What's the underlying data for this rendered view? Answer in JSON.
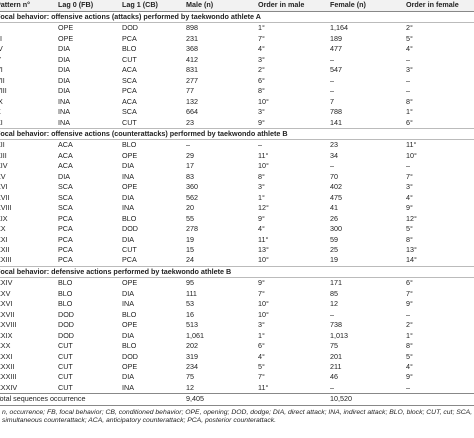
{
  "table": {
    "header": [
      "Pattern n°",
      "Lag 0 (FB)",
      "Lag 1 (CB)",
      "Male (n)",
      "Order in male",
      "Female (n)",
      "Order in female"
    ],
    "sections": [
      {
        "title": "Focal behavior: offensive actions (attacks) performed by taekwondo athlete A",
        "rows": [
          [
            "II",
            "OPE",
            "DOD",
            "898",
            "1°",
            "1,164",
            "2°"
          ],
          [
            "III",
            "OPE",
            "PCA",
            "231",
            "7°",
            "189",
            "5°"
          ],
          [
            "IV",
            "DIA",
            "BLO",
            "368",
            "4°",
            "477",
            "4°"
          ],
          [
            "V",
            "DIA",
            "CUT",
            "412",
            "3°",
            "–",
            "–"
          ],
          [
            "VI",
            "DIA",
            "ACA",
            "831",
            "2°",
            "547",
            "3°"
          ],
          [
            "VII",
            "DIA",
            "SCA",
            "277",
            "6°",
            "–",
            "–"
          ],
          [
            "VIII",
            "DIA",
            "PCA",
            "77",
            "8°",
            "–",
            "–"
          ],
          [
            "IX",
            "INA",
            "ACA",
            "132",
            "10°",
            "7",
            "8°"
          ],
          [
            "X",
            "INA",
            "SCA",
            "664",
            "3°",
            "788",
            "1°"
          ],
          [
            "XI",
            "INA",
            "CUT",
            "23",
            "9°",
            "141",
            "6°"
          ]
        ]
      },
      {
        "title": "Focal behavior: offensive actions (counterattacks) performed by taekwondo athlete B",
        "rows": [
          [
            "XII",
            "ACA",
            "BLO",
            "–",
            "–",
            "23",
            "11°"
          ],
          [
            "XIII",
            "ACA",
            "OPE",
            "29",
            "11°",
            "34",
            "10°"
          ],
          [
            "XIV",
            "ACA",
            "DIA",
            "17",
            "10°",
            "–",
            "–"
          ],
          [
            "XV",
            "DIA",
            "INA",
            "83",
            "8°",
            "70",
            "7°"
          ],
          [
            "XVI",
            "SCA",
            "OPE",
            "360",
            "3°",
            "402",
            "3°"
          ],
          [
            "XVII",
            "SCA",
            "DIA",
            "562",
            "1°",
            "475",
            "4°"
          ],
          [
            "XVIII",
            "SCA",
            "INA",
            "20",
            "12°",
            "41",
            "9°"
          ],
          [
            "XIX",
            "PCA",
            "BLO",
            "55",
            "9°",
            "26",
            "12°"
          ],
          [
            "XX",
            "PCA",
            "DOD",
            "278",
            "4°",
            "300",
            "5°"
          ],
          [
            "XXI",
            "PCA",
            "DIA",
            "19",
            "11°",
            "59",
            "8°"
          ],
          [
            "XXII",
            "PCA",
            "CUT",
            "15",
            "13°",
            "25",
            "13°"
          ],
          [
            "XXIII",
            "PCA",
            "PCA",
            "24",
            "10°",
            "19",
            "14°"
          ]
        ]
      },
      {
        "title": "Focal behavior: defensive actions performed by taekwondo athlete B",
        "rows": [
          [
            "XXIV",
            "BLO",
            "OPE",
            "95",
            "9°",
            "171",
            "6°"
          ],
          [
            "XXV",
            "BLO",
            "DIA",
            "111",
            "7°",
            "85",
            "7°"
          ],
          [
            "XXVI",
            "BLO",
            "INA",
            "53",
            "10°",
            "12",
            "9°"
          ],
          [
            "XXVII",
            "DOD",
            "BLO",
            "16",
            "10°",
            "–",
            "–"
          ],
          [
            "XXVIII",
            "DOD",
            "OPE",
            "513",
            "3°",
            "738",
            "2°"
          ],
          [
            "XXIX",
            "DOD",
            "DIA",
            "1,061",
            "1°",
            "1,013",
            "1°"
          ],
          [
            "XXX",
            "CUT",
            "BLO",
            "202",
            "6°",
            "75",
            "8°"
          ],
          [
            "XXXI",
            "CUT",
            "DOD",
            "319",
            "4°",
            "201",
            "5°"
          ],
          [
            "XXXII",
            "CUT",
            "OPE",
            "234",
            "5°",
            "211",
            "4°"
          ],
          [
            "XXXIII",
            "CUT",
            "DIA",
            "75",
            "7°",
            "46",
            "9°"
          ],
          [
            "XXXIV",
            "CUT",
            "INA",
            "12",
            "11°",
            "–",
            "–"
          ]
        ]
      }
    ],
    "total": {
      "label": "Total sequences occurrence",
      "male": "9,405",
      "female": "10,520"
    }
  },
  "footnote": "n, occurrence; FB, focal behavior; CB, conditioned behavior; OPE, opening; DOD, dodge; DIA, direct attack; INA, indirect attack; BLO, block; CUT, cut; SCA, simultaneous counterattack; ACA, anticipatory counterattack; PCA, posterior counterattack."
}
